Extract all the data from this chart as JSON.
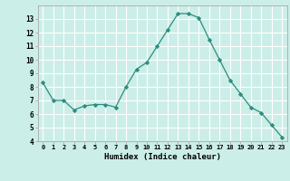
{
  "x": [
    0,
    1,
    2,
    3,
    4,
    5,
    6,
    7,
    8,
    9,
    10,
    11,
    12,
    13,
    14,
    15,
    16,
    17,
    18,
    19,
    20,
    21,
    22,
    23
  ],
  "y": [
    8.3,
    7.0,
    7.0,
    6.3,
    6.6,
    6.7,
    6.7,
    6.5,
    8.0,
    9.3,
    9.8,
    11.0,
    12.2,
    13.4,
    13.4,
    13.1,
    11.5,
    10.0,
    8.5,
    7.5,
    6.5,
    6.1,
    5.2,
    4.3
  ],
  "xlabel": "Humidex (Indice chaleur)",
  "ylim": [
    4,
    14
  ],
  "xlim": [
    -0.5,
    23.5
  ],
  "yticks": [
    4,
    5,
    6,
    7,
    8,
    9,
    10,
    11,
    12,
    13
  ],
  "xticks": [
    0,
    1,
    2,
    3,
    4,
    5,
    6,
    7,
    8,
    9,
    10,
    11,
    12,
    13,
    14,
    15,
    16,
    17,
    18,
    19,
    20,
    21,
    22,
    23
  ],
  "line_color": "#2d8c7e",
  "marker_color": "#2d8c7e",
  "bg_color": "#cceee8",
  "grid_color": "#ffffff",
  "spine_color": "#aaaaaa"
}
